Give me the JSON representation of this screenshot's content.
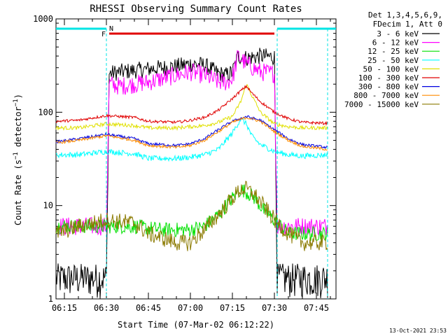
{
  "chart_data": {
    "type": "line",
    "title": "RHESSI Observing Summary Count Rates",
    "ylabel": "Count Rate (s⁻¹ detector⁻¹)",
    "xlabel": "Start Time (07-Mar-02 06:12:22)",
    "y_scale": "log",
    "ylim": [
      1,
      1000
    ],
    "y_ticks": [
      1,
      10,
      100,
      1000
    ],
    "y_tick_labels": [
      "1",
      "10",
      "100",
      "1000"
    ],
    "x_start": "06:12",
    "x_end": "07:52",
    "x_ticks": [
      "06:15",
      "06:30",
      "06:45",
      "07:00",
      "07:15",
      "07:30",
      "07:45"
    ],
    "footer_date": "13-Oct-2021 23:53",
    "legend_header": [
      "Det 1,3,4,5,6,9,",
      "FDecim 1, Att 0"
    ],
    "flags": {
      "N_label": "N",
      "F_label": "F",
      "N_color": "#00e5e5",
      "F_color": "#e00000",
      "N_intervals": [
        [
          "06:12",
          "06:30"
        ],
        [
          "07:31",
          "07:52"
        ]
      ],
      "F_interval": [
        "06:31",
        "07:30"
      ]
    },
    "night_boundaries": [
      "06:30",
      "07:31",
      "07:49"
    ],
    "series": [
      {
        "name": "3 - 6 keV",
        "color": "#000000",
        "x": [
          "06:12",
          "06:30",
          "06:31",
          "06:35",
          "06:45",
          "06:55",
          "07:00",
          "07:05",
          "07:10",
          "07:13",
          "07:15",
          "07:17",
          "07:20",
          "07:25",
          "07:30",
          "07:31",
          "07:35",
          "07:45",
          "07:49"
        ],
        "y": [
          1.5,
          1.5,
          260,
          270,
          290,
          310,
          330,
          320,
          260,
          250,
          270,
          400,
          380,
          400,
          390,
          1.5,
          1.5,
          1.5,
          1.5
        ]
      },
      {
        "name": "6 - 12 keV",
        "color": "#ff00ff",
        "x": [
          "06:12",
          "06:30",
          "06:31",
          "06:35",
          "06:45",
          "06:55",
          "07:00",
          "07:05",
          "07:10",
          "07:13",
          "07:15",
          "07:17",
          "07:20",
          "07:25",
          "07:30",
          "07:31",
          "07:35",
          "07:45",
          "07:49"
        ],
        "y": [
          6,
          6,
          200,
          190,
          210,
          250,
          270,
          250,
          210,
          210,
          230,
          400,
          330,
          270,
          260,
          6,
          6,
          6,
          6
        ]
      },
      {
        "name": "12 - 25 keV",
        "color": "#00e000",
        "x": [
          "06:12",
          "06:30",
          "06:31",
          "06:40",
          "06:50",
          "07:00",
          "07:05",
          "07:10",
          "07:15",
          "07:18",
          "07:20",
          "07:23",
          "07:26",
          "07:30",
          "07:35",
          "07:40",
          "07:49"
        ],
        "y": [
          6,
          6,
          6,
          6,
          5.5,
          5.5,
          6,
          8,
          12,
          15,
          14,
          12,
          9,
          7,
          5,
          5,
          5
        ]
      },
      {
        "name": "25 - 50 keV",
        "color": "#00ffff",
        "x": [
          "06:12",
          "06:20",
          "06:30",
          "06:40",
          "06:45",
          "06:55",
          "07:00",
          "07:05",
          "07:10",
          "07:15",
          "07:18",
          "07:20",
          "07:22",
          "07:25",
          "07:30",
          "07:35",
          "07:40",
          "07:49"
        ],
        "y": [
          35,
          35,
          38,
          36,
          32,
          32,
          33,
          35,
          40,
          60,
          85,
          75,
          55,
          45,
          38,
          35,
          34,
          35
        ]
      },
      {
        "name": "50 - 100 keV",
        "color": "#e0e000",
        "x": [
          "06:12",
          "06:20",
          "06:30",
          "06:40",
          "06:45",
          "06:55",
          "07:00",
          "07:05",
          "07:10",
          "07:15",
          "07:18",
          "07:20",
          "07:22",
          "07:25",
          "07:30",
          "07:35",
          "07:40",
          "07:49"
        ],
        "y": [
          68,
          68,
          75,
          72,
          68,
          68,
          70,
          72,
          78,
          90,
          130,
          200,
          150,
          100,
          75,
          70,
          68,
          68
        ]
      },
      {
        "name": "100 - 300 keV",
        "color": "#e00000",
        "x": [
          "06:12",
          "06:20",
          "06:30",
          "06:40",
          "06:45",
          "06:55",
          "07:00",
          "07:05",
          "07:10",
          "07:15",
          "07:18",
          "07:20",
          "07:22",
          "07:25",
          "07:30",
          "07:35",
          "07:40",
          "07:49"
        ],
        "y": [
          80,
          82,
          92,
          88,
          80,
          78,
          82,
          88,
          105,
          140,
          170,
          190,
          160,
          130,
          100,
          85,
          78,
          76
        ]
      },
      {
        "name": "300 - 800 keV",
        "color": "#0000e0",
        "x": [
          "06:12",
          "06:20",
          "06:30",
          "06:40",
          "06:45",
          "06:55",
          "07:00",
          "07:05",
          "07:10",
          "07:15",
          "07:20",
          "07:25",
          "07:30",
          "07:35",
          "07:40",
          "07:49"
        ],
        "y": [
          48,
          52,
          58,
          52,
          46,
          44,
          46,
          52,
          65,
          80,
          90,
          82,
          65,
          52,
          45,
          42
        ]
      },
      {
        "name": "800 - 7000 keV",
        "color": "#ff8c00",
        "x": [
          "06:12",
          "06:20",
          "06:30",
          "06:40",
          "06:45",
          "06:55",
          "07:00",
          "07:05",
          "07:10",
          "07:15",
          "07:20",
          "07:25",
          "07:30",
          "07:35",
          "07:40",
          "07:49"
        ],
        "y": [
          47,
          50,
          56,
          50,
          44,
          42,
          44,
          50,
          62,
          78,
          88,
          80,
          62,
          50,
          43,
          40
        ]
      },
      {
        "name": "7000 - 15000 keV",
        "color": "#8b7a00",
        "x": [
          "06:12",
          "06:20",
          "06:30",
          "06:40",
          "06:45",
          "06:55",
          "07:00",
          "07:05",
          "07:10",
          "07:15",
          "07:18",
          "07:20",
          "07:23",
          "07:26",
          "07:30",
          "07:35",
          "07:40",
          "07:49"
        ],
        "y": [
          5,
          6,
          7,
          6.5,
          5,
          4,
          4,
          5.5,
          8,
          12,
          15,
          15,
          13,
          10,
          7,
          5,
          4,
          4
        ]
      }
    ]
  }
}
